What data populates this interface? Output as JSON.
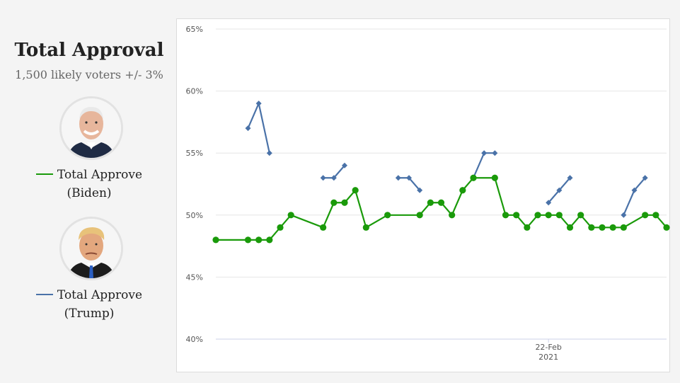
{
  "title": "Total Approval",
  "subtitle": "1,500 likely voters +/- 3%",
  "legend": [
    {
      "line1": "Total Approve",
      "line2": "(Biden)",
      "color": "#1a9a0a",
      "avatar": "biden-photo"
    },
    {
      "line1": "Total Approve",
      "line2": "(Trump)",
      "color": "#4a72a8",
      "avatar": "trump-photo"
    }
  ],
  "chart_data": {
    "type": "line",
    "ylim": [
      40,
      65
    ],
    "yticks": [
      "65%",
      "60%",
      "55%",
      "50%",
      "45%",
      "40%"
    ],
    "ytick_values": [
      65,
      60,
      55,
      50,
      45,
      40
    ],
    "x_range": [
      0,
      42
    ],
    "x_annotation": {
      "x": 31,
      "line1": "22-Feb",
      "line2": "2021"
    },
    "grid": true,
    "series": [
      {
        "name": "Total Approve (Biden)",
        "color": "#1a9a0a",
        "marker": "circle",
        "x": [
          0,
          3,
          4,
          5,
          6,
          7,
          10,
          11,
          12,
          13,
          14,
          16,
          19,
          20,
          21,
          22,
          23,
          24,
          26,
          27,
          28,
          29,
          30,
          31,
          32,
          33,
          34,
          35,
          36,
          37,
          38,
          40,
          41,
          42
        ],
        "y": [
          48,
          48,
          48,
          48,
          49,
          50,
          49,
          51,
          51,
          52,
          49,
          50,
          50,
          51,
          51,
          50,
          52,
          53,
          53,
          50,
          50,
          49,
          50,
          50,
          50,
          49,
          50,
          49,
          49,
          49,
          49,
          50,
          50,
          49
        ]
      },
      {
        "name": "Total Approve (Trump)",
        "color": "#4a72a8",
        "marker": "diamond",
        "segments": [
          {
            "x": [
              3,
              4,
              5
            ],
            "y": [
              57,
              59,
              55
            ]
          },
          {
            "x": [
              10,
              11,
              12
            ],
            "y": [
              53,
              53,
              54
            ]
          },
          {
            "x": [
              17,
              18,
              19
            ],
            "y": [
              53,
              53,
              52
            ]
          },
          {
            "x": [
              24,
              25,
              26
            ],
            "y": [
              53,
              55,
              55
            ]
          },
          {
            "x": [
              31,
              32,
              33
            ],
            "y": [
              51,
              52,
              53
            ]
          },
          {
            "x": [
              38,
              39,
              40
            ],
            "y": [
              50,
              52,
              53
            ]
          }
        ]
      }
    ]
  }
}
